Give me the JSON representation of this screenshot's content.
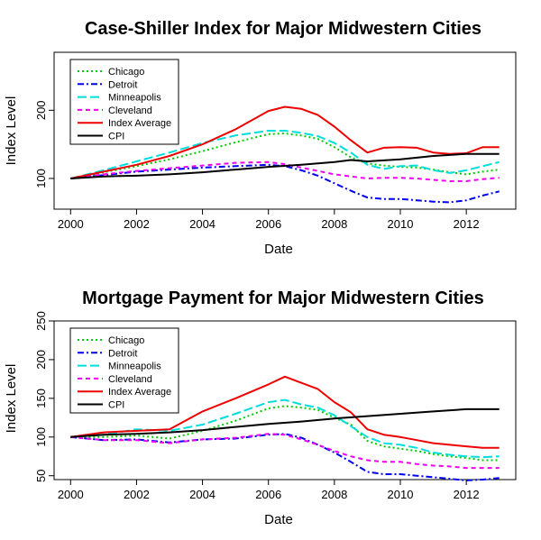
{
  "chart_data": [
    {
      "type": "line",
      "title": "Case-Shiller Index for Major Midwestern Cities",
      "xlabel": "Date",
      "ylabel": "Index Level",
      "xlim": [
        1999.5,
        2013.5
      ],
      "ylim": [
        55,
        285
      ],
      "xticks": [
        2000,
        2002,
        2004,
        2006,
        2008,
        2010,
        2012
      ],
      "yticks": [
        100,
        200
      ],
      "legend_position": "top-left",
      "series": [
        {
          "name": "Chicago",
          "color": "#00cc00",
          "dash": "dotted",
          "x": [
            2000,
            2001,
            2002,
            2003,
            2004,
            2005,
            2006,
            2006.5,
            2007,
            2007.5,
            2008,
            2008.5,
            2009,
            2009.5,
            2010,
            2010.5,
            2011,
            2011.5,
            2012,
            2012.5,
            2013
          ],
          "y": [
            100,
            109,
            118,
            128,
            140,
            153,
            165,
            166,
            163,
            158,
            146,
            131,
            122,
            119,
            117,
            116,
            113,
            109,
            106,
            110,
            113
          ]
        },
        {
          "name": "Detroit",
          "color": "#0000ee",
          "dash": "dashdot",
          "x": [
            2000,
            2001,
            2002,
            2003,
            2004,
            2005,
            2006,
            2006.5,
            2007,
            2007.5,
            2008,
            2008.5,
            2009,
            2009.5,
            2010,
            2010.5,
            2011,
            2011.5,
            2012,
            2012.5,
            2013
          ],
          "y": [
            100,
            105,
            110,
            113,
            116,
            118,
            120,
            118,
            112,
            104,
            93,
            82,
            72,
            70,
            70,
            68,
            66,
            65,
            68,
            75,
            81
          ]
        },
        {
          "name": "Minneapolis",
          "color": "#00dddd",
          "dash": "longdash",
          "x": [
            2000,
            2001,
            2002,
            2003,
            2004,
            2005,
            2006,
            2006.5,
            2007,
            2007.5,
            2008,
            2008.5,
            2009,
            2009.5,
            2010,
            2010.5,
            2011,
            2011.5,
            2012,
            2012.5,
            2013
          ],
          "y": [
            100,
            112,
            125,
            138,
            152,
            163,
            170,
            170,
            167,
            162,
            152,
            138,
            120,
            114,
            118,
            119,
            112,
            108,
            112,
            118,
            124
          ]
        },
        {
          "name": "Cleveland",
          "color": "#ee00ee",
          "dash": "dashed",
          "x": [
            2000,
            2001,
            2002,
            2003,
            2004,
            2005,
            2006,
            2006.5,
            2007,
            2007.5,
            2008,
            2008.5,
            2009,
            2009.5,
            2010,
            2010.5,
            2011,
            2011.5,
            2012,
            2012.5,
            2013
          ],
          "y": [
            100,
            106,
            111,
            115,
            119,
            123,
            124,
            121,
            116,
            111,
            106,
            103,
            100,
            101,
            101,
            100,
            98,
            96,
            96,
            99,
            101
          ]
        },
        {
          "name": "Index Average",
          "color": "#ee0000",
          "dash": "solid",
          "x": [
            2000,
            2001,
            2002,
            2003,
            2004,
            2005,
            2006,
            2006.5,
            2007,
            2007.5,
            2008,
            2008.5,
            2009,
            2009.5,
            2010,
            2010.5,
            2011,
            2011.5,
            2012,
            2012.5,
            2013
          ],
          "y": [
            100,
            110,
            120,
            133,
            150,
            172,
            199,
            205,
            202,
            193,
            176,
            156,
            138,
            145,
            146,
            145,
            138,
            136,
            137,
            146,
            146
          ]
        },
        {
          "name": "CPI",
          "color": "#000000",
          "dash": "solid",
          "x": [
            2000,
            2001,
            2002,
            2003,
            2004,
            2005,
            2006,
            2007,
            2008,
            2008.5,
            2009,
            2010,
            2011,
            2012,
            2013
          ],
          "y": [
            100,
            103,
            104,
            106,
            109,
            113,
            117,
            120,
            124,
            127,
            125,
            128,
            133,
            136,
            136
          ]
        }
      ]
    },
    {
      "type": "line",
      "title": "Mortgage Payment for Major Midwestern Cities",
      "xlabel": "Date",
      "ylabel": "Index Level",
      "xlim": [
        1999.5,
        2013.5
      ],
      "ylim": [
        45,
        250
      ],
      "xticks": [
        2000,
        2002,
        2004,
        2006,
        2008,
        2010,
        2012
      ],
      "yticks": [
        50,
        100,
        150,
        200,
        250
      ],
      "legend_position": "top-left",
      "series": [
        {
          "name": "Chicago",
          "color": "#00cc00",
          "dash": "dotted",
          "x": [
            2000,
            2001,
            2002,
            2003,
            2004,
            2005,
            2006,
            2006.5,
            2007,
            2007.5,
            2008,
            2008.5,
            2009,
            2009.5,
            2010,
            2010.5,
            2011,
            2011.5,
            2012,
            2012.5,
            2013
          ],
          "y": [
            100,
            100,
            102,
            98,
            108,
            121,
            137,
            140,
            138,
            135,
            125,
            116,
            95,
            88,
            85,
            82,
            78,
            75,
            73,
            70,
            70
          ]
        },
        {
          "name": "Detroit",
          "color": "#0000ee",
          "dash": "dashdot",
          "x": [
            2000,
            2001,
            2002,
            2003,
            2004,
            2005,
            2006,
            2006.5,
            2007,
            2007.5,
            2008,
            2008.5,
            2009,
            2009.5,
            2010,
            2010.5,
            2011,
            2011.5,
            2012,
            2012.5,
            2013
          ],
          "y": [
            100,
            96,
            97,
            93,
            97,
            98,
            103,
            104,
            99,
            90,
            80,
            68,
            55,
            52,
            52,
            50,
            48,
            46,
            44,
            45,
            47
          ]
        },
        {
          "name": "Minneapolis",
          "color": "#00dddd",
          "dash": "longdash",
          "x": [
            2000,
            2001,
            2002,
            2003,
            2004,
            2005,
            2006,
            2006.5,
            2007,
            2007.5,
            2008,
            2008.5,
            2009,
            2009.5,
            2010,
            2010.5,
            2011,
            2011.5,
            2012,
            2012.5,
            2013
          ],
          "y": [
            100,
            103,
            110,
            108,
            116,
            130,
            145,
            148,
            142,
            138,
            128,
            114,
            100,
            92,
            90,
            86,
            80,
            77,
            75,
            74,
            75
          ]
        },
        {
          "name": "Cleveland",
          "color": "#ee00ee",
          "dash": "dashed",
          "x": [
            2000,
            2001,
            2002,
            2003,
            2004,
            2005,
            2006,
            2006.5,
            2007,
            2007.5,
            2008,
            2008.5,
            2009,
            2009.5,
            2010,
            2010.5,
            2011,
            2011.5,
            2012,
            2012.5,
            2013
          ],
          "y": [
            100,
            96,
            96,
            92,
            97,
            99,
            104,
            103,
            97,
            90,
            82,
            75,
            70,
            68,
            68,
            65,
            63,
            62,
            60,
            60,
            60
          ]
        },
        {
          "name": "Index Average",
          "color": "#ee0000",
          "dash": "solid",
          "x": [
            2000,
            2001,
            2002,
            2003,
            2004,
            2005,
            2006,
            2006.5,
            2007,
            2007.5,
            2008,
            2008.5,
            2009,
            2009.5,
            2010,
            2010.5,
            2011,
            2011.5,
            2012,
            2012.5,
            2013
          ],
          "y": [
            100,
            106,
            108,
            110,
            133,
            150,
            168,
            178,
            170,
            162,
            145,
            132,
            110,
            103,
            100,
            96,
            92,
            90,
            88,
            86,
            86
          ]
        },
        {
          "name": "CPI",
          "color": "#000000",
          "dash": "solid",
          "x": [
            2000,
            2001,
            2002,
            2003,
            2004,
            2005,
            2006,
            2007,
            2008,
            2009,
            2010,
            2011,
            2012,
            2013
          ],
          "y": [
            100,
            103,
            104,
            106,
            109,
            113,
            117,
            120,
            124,
            127,
            130,
            133,
            136,
            136
          ]
        }
      ]
    }
  ]
}
